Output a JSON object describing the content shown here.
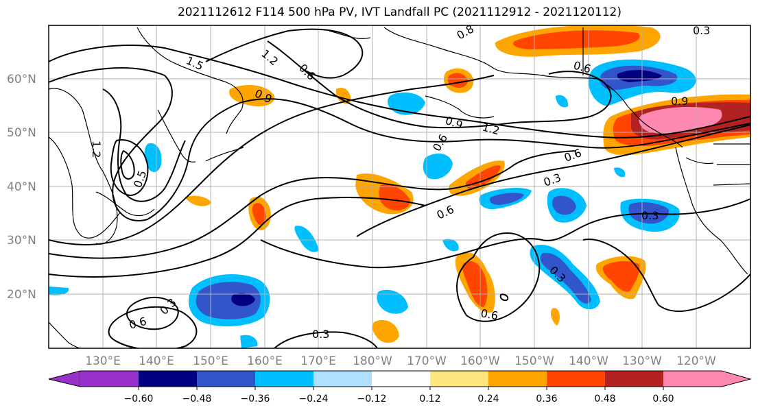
{
  "title": "2021112612 F114 500 hPa PV, IVT Landfall PC (2021112912 - 2021120112)",
  "lat_labels": [
    "60°N",
    "50°N",
    "40°N",
    "30°N",
    "20°N"
  ],
  "lon_labels": [
    "130°E",
    "140°E",
    "150°E",
    "160°E",
    "170°E",
    "180°W",
    "170°W",
    "160°W",
    "150°W",
    "140°W",
    "130°W",
    "120°W"
  ],
  "colorbar": {
    "tick_labels": [
      "−0.60",
      "−0.48",
      "−0.36",
      "−0.24",
      "−0.12",
      "0.12",
      "0.24",
      "0.36",
      "0.48",
      "0.60"
    ],
    "colors": [
      "#9932CC",
      "#000080",
      "#3355CC",
      "#00BFFF",
      "#B0E0FF",
      "#FFFFFF",
      "#FFE680",
      "#FFA500",
      "#FF4500",
      "#B22222",
      "#FF88B0"
    ]
  },
  "contour_labels": [
    "1.5",
    "1.2",
    "0.6",
    "0.9",
    "0.8",
    "0.6",
    "0.9",
    "0.9",
    "1.2",
    "0.6",
    "0.6",
    "0.3",
    "0.6",
    "0.3",
    "0.3",
    "0.6",
    "0.3",
    "0.6",
    "0.3",
    "0.3",
    "1.2",
    "0.5"
  ]
}
